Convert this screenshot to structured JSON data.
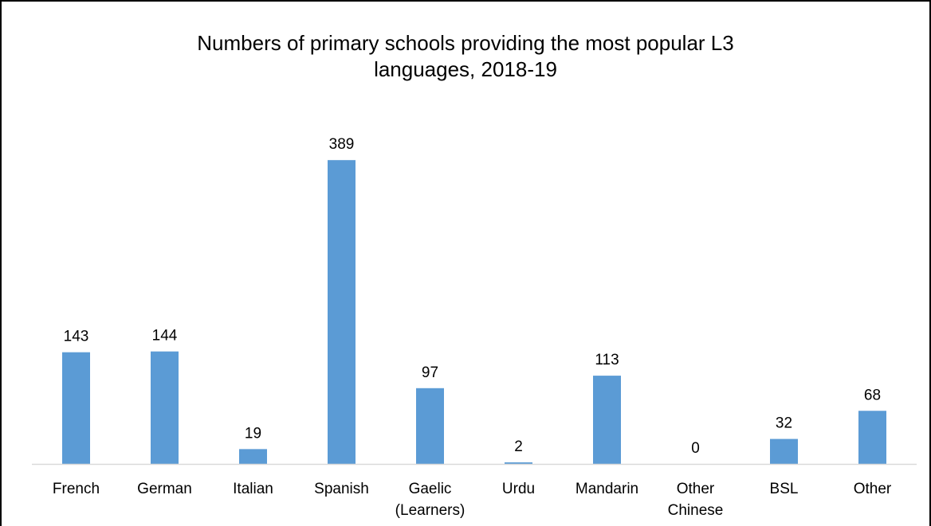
{
  "chart_data": {
    "type": "bar",
    "title_lines": [
      "Numbers of primary schools providing the most popular L3",
      "languages, 2018-19"
    ],
    "categories": [
      [
        "French"
      ],
      [
        "German"
      ],
      [
        "Italian"
      ],
      [
        "Spanish"
      ],
      [
        "Gaelic",
        "(Learners)"
      ],
      [
        "Urdu"
      ],
      [
        "Mandarin"
      ],
      [
        "Other",
        "Chinese"
      ],
      [
        "BSL"
      ],
      [
        "Other"
      ]
    ],
    "values": [
      143,
      144,
      19,
      389,
      97,
      2,
      113,
      0,
      32,
      68
    ],
    "value_labels": [
      "143",
      "144",
      "19",
      "389",
      "97",
      "2",
      "113",
      "0",
      "32",
      "68"
    ],
    "ylim": [
      0,
      400
    ],
    "grid": false,
    "legend": "none",
    "bar_color": "#5B9BD5",
    "axis_color": "#D9D9D9"
  }
}
